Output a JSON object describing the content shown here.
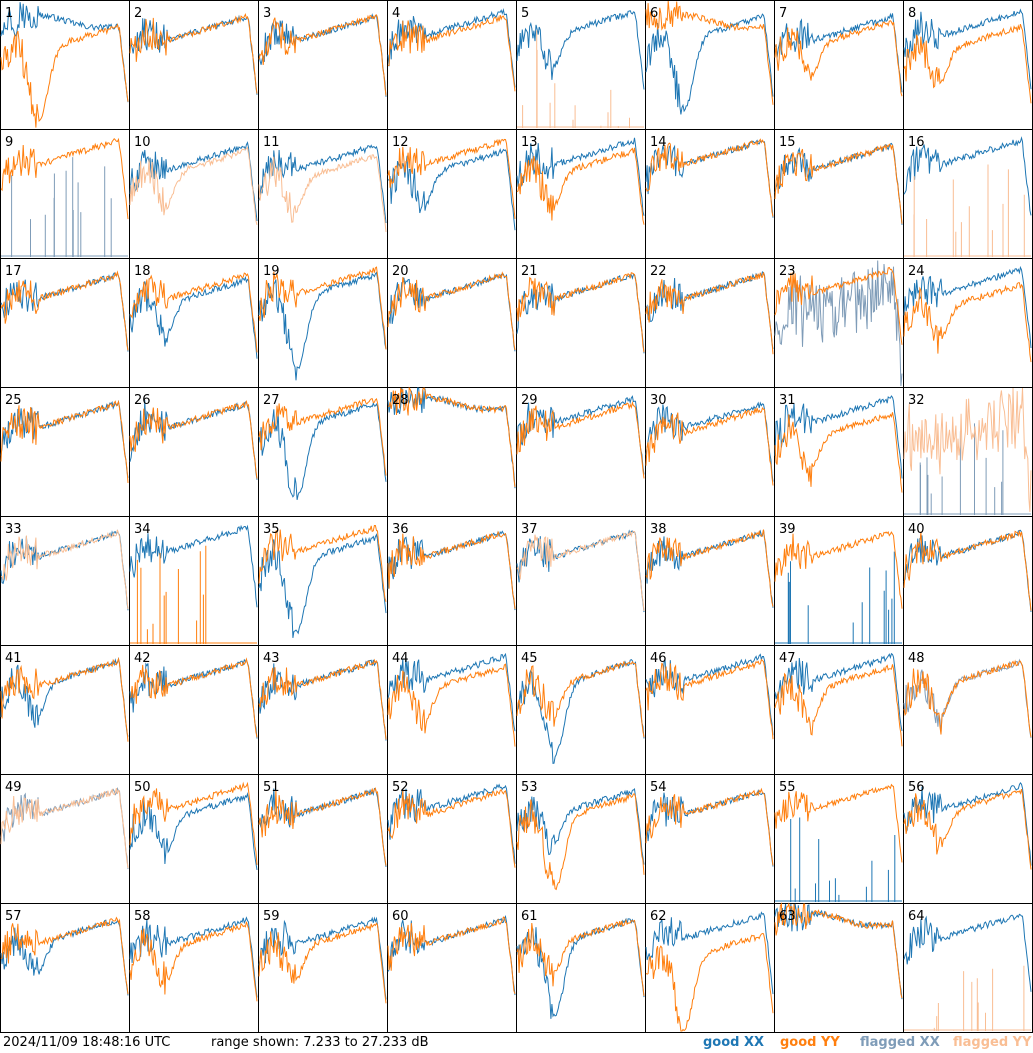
{
  "footer": {
    "timestamp": "2024/11/09 18:48:16 UTC",
    "range_text": "range shown: 7.233 to 27.233 dB"
  },
  "legend": [
    {
      "label": "good XX",
      "color": "#1f77b4"
    },
    {
      "label": "good YY",
      "color": "#ff7f0e"
    },
    {
      "label": "flagged XX",
      "color": "#7f9cb8"
    },
    {
      "label": "flagged YY",
      "color": "#f9be94"
    }
  ],
  "chart_data": {
    "type": "line",
    "grid": "8x8 small multiples",
    "y_unit": "dB",
    "ylim": [
      7.233,
      27.233
    ],
    "tiles": [
      {
        "id": "1",
        "xx": "good",
        "yy": "good",
        "xx_shape": "flat",
        "yy_shape": "deepdip",
        "xx_offset": 1,
        "yy_offset": -2
      },
      {
        "id": "2",
        "xx": "good",
        "yy": "good",
        "xx_shape": "smooth",
        "yy_shape": "smooth",
        "xx_offset": 0,
        "yy_offset": 0
      },
      {
        "id": "3",
        "xx": "good",
        "yy": "good",
        "xx_shape": "smooth",
        "yy_shape": "smooth",
        "xx_offset": 0,
        "yy_offset": 0
      },
      {
        "id": "4",
        "xx": "good",
        "yy": "good",
        "xx_shape": "smooth",
        "yy_shape": "smooth",
        "xx_offset": 1,
        "yy_offset": 0
      },
      {
        "id": "5",
        "xx": "good",
        "yy": "flagged_spikes",
        "xx_shape": "dip",
        "yy_shape": "spikes",
        "xx_offset": 1,
        "yy_offset": 0
      },
      {
        "id": "6",
        "xx": "good",
        "yy": "good",
        "xx_shape": "deepdip",
        "yy_shape": "flat",
        "xx_offset": 0,
        "yy_offset": 1
      },
      {
        "id": "7",
        "xx": "good",
        "yy": "good",
        "xx_shape": "smooth",
        "yy_shape": "dip",
        "xx_offset": 0,
        "yy_offset": -1
      },
      {
        "id": "8",
        "xx": "good",
        "yy": "good",
        "xx_shape": "smooth",
        "yy_shape": "dip",
        "xx_offset": 1,
        "yy_offset": -2
      },
      {
        "id": "9",
        "xx": "flagged_spikes",
        "yy": "good",
        "xx_shape": "spikes",
        "yy_shape": "smooth",
        "xx_offset": 0,
        "yy_offset": 1
      },
      {
        "id": "10",
        "xx": "good",
        "yy": "flagged",
        "xx_shape": "smooth",
        "yy_shape": "dip",
        "xx_offset": 0,
        "yy_offset": -1
      },
      {
        "id": "11",
        "xx": "good",
        "yy": "flagged",
        "xx_shape": "smooth",
        "yy_shape": "dip",
        "xx_offset": 0,
        "yy_offset": -2
      },
      {
        "id": "12",
        "xx": "good",
        "yy": "good",
        "xx_shape": "dip",
        "yy_shape": "smooth",
        "xx_offset": -1,
        "yy_offset": 1
      },
      {
        "id": "13",
        "xx": "good",
        "yy": "good",
        "xx_shape": "smooth",
        "yy_shape": "dip",
        "xx_offset": 1,
        "yy_offset": -1
      },
      {
        "id": "14",
        "xx": "good",
        "yy": "good",
        "xx_shape": "smooth",
        "yy_shape": "smooth",
        "xx_offset": 1,
        "yy_offset": 1
      },
      {
        "id": "15",
        "xx": "good",
        "yy": "good",
        "xx_shape": "smooth",
        "yy_shape": "smooth",
        "xx_offset": 0,
        "yy_offset": 0
      },
      {
        "id": "16",
        "xx": "good",
        "yy": "flagged_spikes",
        "xx_shape": "smooth",
        "yy_shape": "spikes",
        "xx_offset": 1,
        "yy_offset": 0
      },
      {
        "id": "17",
        "xx": "good",
        "yy": "good",
        "xx_shape": "smooth",
        "yy_shape": "smooth",
        "xx_offset": 0,
        "yy_offset": 0
      },
      {
        "id": "18",
        "xx": "good",
        "yy": "good",
        "xx_shape": "dip",
        "yy_shape": "smooth",
        "xx_offset": -1,
        "yy_offset": 0
      },
      {
        "id": "19",
        "xx": "good",
        "yy": "good",
        "xx_shape": "deepdip",
        "yy_shape": "smooth",
        "xx_offset": 0,
        "yy_offset": 1
      },
      {
        "id": "20",
        "xx": "good",
        "yy": "good",
        "xx_shape": "smooth",
        "yy_shape": "smooth",
        "xx_offset": 0,
        "yy_offset": 0
      },
      {
        "id": "21",
        "xx": "good",
        "yy": "good",
        "xx_shape": "smooth",
        "yy_shape": "smooth",
        "xx_offset": 0,
        "yy_offset": 0
      },
      {
        "id": "22",
        "xx": "good",
        "yy": "good",
        "xx_shape": "smooth",
        "yy_shape": "smooth",
        "xx_offset": 0,
        "yy_offset": 0
      },
      {
        "id": "23",
        "xx": "flagged",
        "yy": "good",
        "xx_shape": "noisy",
        "yy_shape": "smooth",
        "xx_offset": -3,
        "yy_offset": 1
      },
      {
        "id": "24",
        "xx": "good",
        "yy": "good",
        "xx_shape": "smooth",
        "yy_shape": "dip",
        "xx_offset": 1,
        "yy_offset": -2
      },
      {
        "id": "25",
        "xx": "good",
        "yy": "good",
        "xx_shape": "smooth",
        "yy_shape": "smooth",
        "xx_offset": 0,
        "yy_offset": 0
      },
      {
        "id": "26",
        "xx": "good",
        "yy": "good",
        "xx_shape": "smooth",
        "yy_shape": "smooth",
        "xx_offset": 0,
        "yy_offset": 0
      },
      {
        "id": "27",
        "xx": "good",
        "yy": "good",
        "xx_shape": "deepdip",
        "yy_shape": "smooth",
        "xx_offset": 0,
        "yy_offset": 1
      },
      {
        "id": "28",
        "xx": "good",
        "yy": "good",
        "xx_shape": "flat",
        "yy_shape": "flat",
        "xx_offset": 2,
        "yy_offset": 2
      },
      {
        "id": "29",
        "xx": "good",
        "yy": "good",
        "xx_shape": "smooth",
        "yy_shape": "smooth",
        "xx_offset": 1,
        "yy_offset": 0
      },
      {
        "id": "30",
        "xx": "good",
        "yy": "good",
        "xx_shape": "smooth",
        "yy_shape": "smooth",
        "xx_offset": 0,
        "yy_offset": -1
      },
      {
        "id": "31",
        "xx": "good",
        "yy": "good",
        "xx_shape": "smooth",
        "yy_shape": "dip",
        "xx_offset": 1,
        "yy_offset": -2
      },
      {
        "id": "32",
        "xx": "flagged_spikes",
        "yy": "flagged",
        "xx_shape": "spikes",
        "yy_shape": "noisy",
        "xx_offset": 0,
        "yy_offset": -2
      },
      {
        "id": "33",
        "xx": "good",
        "yy": "flagged",
        "xx_shape": "smooth",
        "yy_shape": "smooth",
        "xx_offset": 0,
        "yy_offset": 0
      },
      {
        "id": "34",
        "xx": "good",
        "yy": "good_spikes",
        "xx_shape": "smooth",
        "yy_shape": "spikes",
        "xx_offset": 1,
        "yy_offset": 0
      },
      {
        "id": "35",
        "xx": "good",
        "yy": "good",
        "xx_shape": "deepdip",
        "yy_shape": "smooth",
        "xx_offset": -1,
        "yy_offset": 1
      },
      {
        "id": "36",
        "xx": "good",
        "yy": "good",
        "xx_shape": "smooth",
        "yy_shape": "smooth",
        "xx_offset": 0,
        "yy_offset": 0
      },
      {
        "id": "37",
        "xx": "good",
        "yy": "flagged",
        "xx_shape": "smooth",
        "yy_shape": "smooth",
        "xx_offset": 0,
        "yy_offset": 0
      },
      {
        "id": "38",
        "xx": "good",
        "yy": "good",
        "xx_shape": "smooth",
        "yy_shape": "smooth",
        "xx_offset": 0,
        "yy_offset": 0
      },
      {
        "id": "39",
        "xx": "good_spikes",
        "yy": "good",
        "xx_shape": "spikes",
        "yy_shape": "smooth",
        "xx_offset": 0,
        "yy_offset": 0
      },
      {
        "id": "40",
        "xx": "good",
        "yy": "good",
        "xx_shape": "smooth",
        "yy_shape": "smooth",
        "xx_offset": 0,
        "yy_offset": 0
      },
      {
        "id": "41",
        "xx": "good",
        "yy": "good",
        "xx_shape": "dip",
        "yy_shape": "smooth",
        "xx_offset": 0,
        "yy_offset": 0
      },
      {
        "id": "42",
        "xx": "good",
        "yy": "good",
        "xx_shape": "smooth",
        "yy_shape": "smooth",
        "xx_offset": 0,
        "yy_offset": 0
      },
      {
        "id": "43",
        "xx": "good",
        "yy": "good",
        "xx_shape": "smooth",
        "yy_shape": "smooth",
        "xx_offset": 0,
        "yy_offset": 0
      },
      {
        "id": "44",
        "xx": "good",
        "yy": "good",
        "xx_shape": "smooth",
        "yy_shape": "dip",
        "xx_offset": 1,
        "yy_offset": -1
      },
      {
        "id": "45",
        "xx": "good",
        "yy": "good",
        "xx_shape": "deepdip",
        "yy_shape": "dip",
        "xx_offset": 0,
        "yy_offset": 0
      },
      {
        "id": "46",
        "xx": "good",
        "yy": "good",
        "xx_shape": "smooth",
        "yy_shape": "smooth",
        "xx_offset": 1,
        "yy_offset": 0
      },
      {
        "id": "47",
        "xx": "good",
        "yy": "good",
        "xx_shape": "smooth",
        "yy_shape": "dip",
        "xx_offset": 1,
        "yy_offset": -1
      },
      {
        "id": "48",
        "xx": "flagged",
        "yy": "good",
        "xx_shape": "dip",
        "yy_shape": "dip",
        "xx_offset": 0,
        "yy_offset": 0
      },
      {
        "id": "49",
        "xx": "flagged",
        "yy": "flagged",
        "xx_shape": "smooth",
        "yy_shape": "smooth",
        "xx_offset": 0,
        "yy_offset": 0
      },
      {
        "id": "50",
        "xx": "good",
        "yy": "good",
        "xx_shape": "dip",
        "yy_shape": "smooth",
        "xx_offset": -1,
        "yy_offset": 1
      },
      {
        "id": "51",
        "xx": "good",
        "yy": "good",
        "xx_shape": "smooth",
        "yy_shape": "smooth",
        "xx_offset": 0,
        "yy_offset": 0
      },
      {
        "id": "52",
        "xx": "good",
        "yy": "good",
        "xx_shape": "smooth",
        "yy_shape": "smooth",
        "xx_offset": 1,
        "yy_offset": 0
      },
      {
        "id": "53",
        "xx": "good",
        "yy": "good",
        "xx_shape": "dip",
        "yy_shape": "deepdip",
        "xx_offset": 0,
        "yy_offset": -1
      },
      {
        "id": "54",
        "xx": "good",
        "yy": "good",
        "xx_shape": "smooth",
        "yy_shape": "smooth",
        "xx_offset": 0,
        "yy_offset": 0
      },
      {
        "id": "55",
        "xx": "good_spikes",
        "yy": "good",
        "xx_shape": "spikes",
        "yy_shape": "smooth",
        "xx_offset": 0,
        "yy_offset": 1
      },
      {
        "id": "56",
        "xx": "good",
        "yy": "good",
        "xx_shape": "smooth",
        "yy_shape": "dip",
        "xx_offset": 1,
        "yy_offset": 0
      },
      {
        "id": "57",
        "xx": "good",
        "yy": "good",
        "xx_shape": "dip",
        "yy_shape": "smooth",
        "xx_offset": 0,
        "yy_offset": 0
      },
      {
        "id": "58",
        "xx": "good",
        "yy": "good",
        "xx_shape": "smooth",
        "yy_shape": "dip",
        "xx_offset": 0,
        "yy_offset": -1
      },
      {
        "id": "59",
        "xx": "good",
        "yy": "good",
        "xx_shape": "smooth",
        "yy_shape": "dip",
        "xx_offset": 0,
        "yy_offset": -1
      },
      {
        "id": "60",
        "xx": "good",
        "yy": "good",
        "xx_shape": "smooth",
        "yy_shape": "smooth",
        "xx_offset": 0,
        "yy_offset": 0
      },
      {
        "id": "61",
        "xx": "good",
        "yy": "good",
        "xx_shape": "deepdip",
        "yy_shape": "dip",
        "xx_offset": 0,
        "yy_offset": 0
      },
      {
        "id": "62",
        "xx": "good",
        "yy": "good",
        "xx_shape": "smooth",
        "yy_shape": "deepdip",
        "xx_offset": 1,
        "yy_offset": -3
      },
      {
        "id": "63",
        "xx": "good",
        "yy": "good",
        "xx_shape": "flat",
        "yy_shape": "flat",
        "xx_offset": 2,
        "yy_offset": 2
      },
      {
        "id": "64",
        "xx": "good",
        "yy": "flagged_spikes",
        "xx_shape": "smooth",
        "yy_shape": "spikes",
        "xx_offset": 1,
        "yy_offset": 0
      }
    ]
  }
}
